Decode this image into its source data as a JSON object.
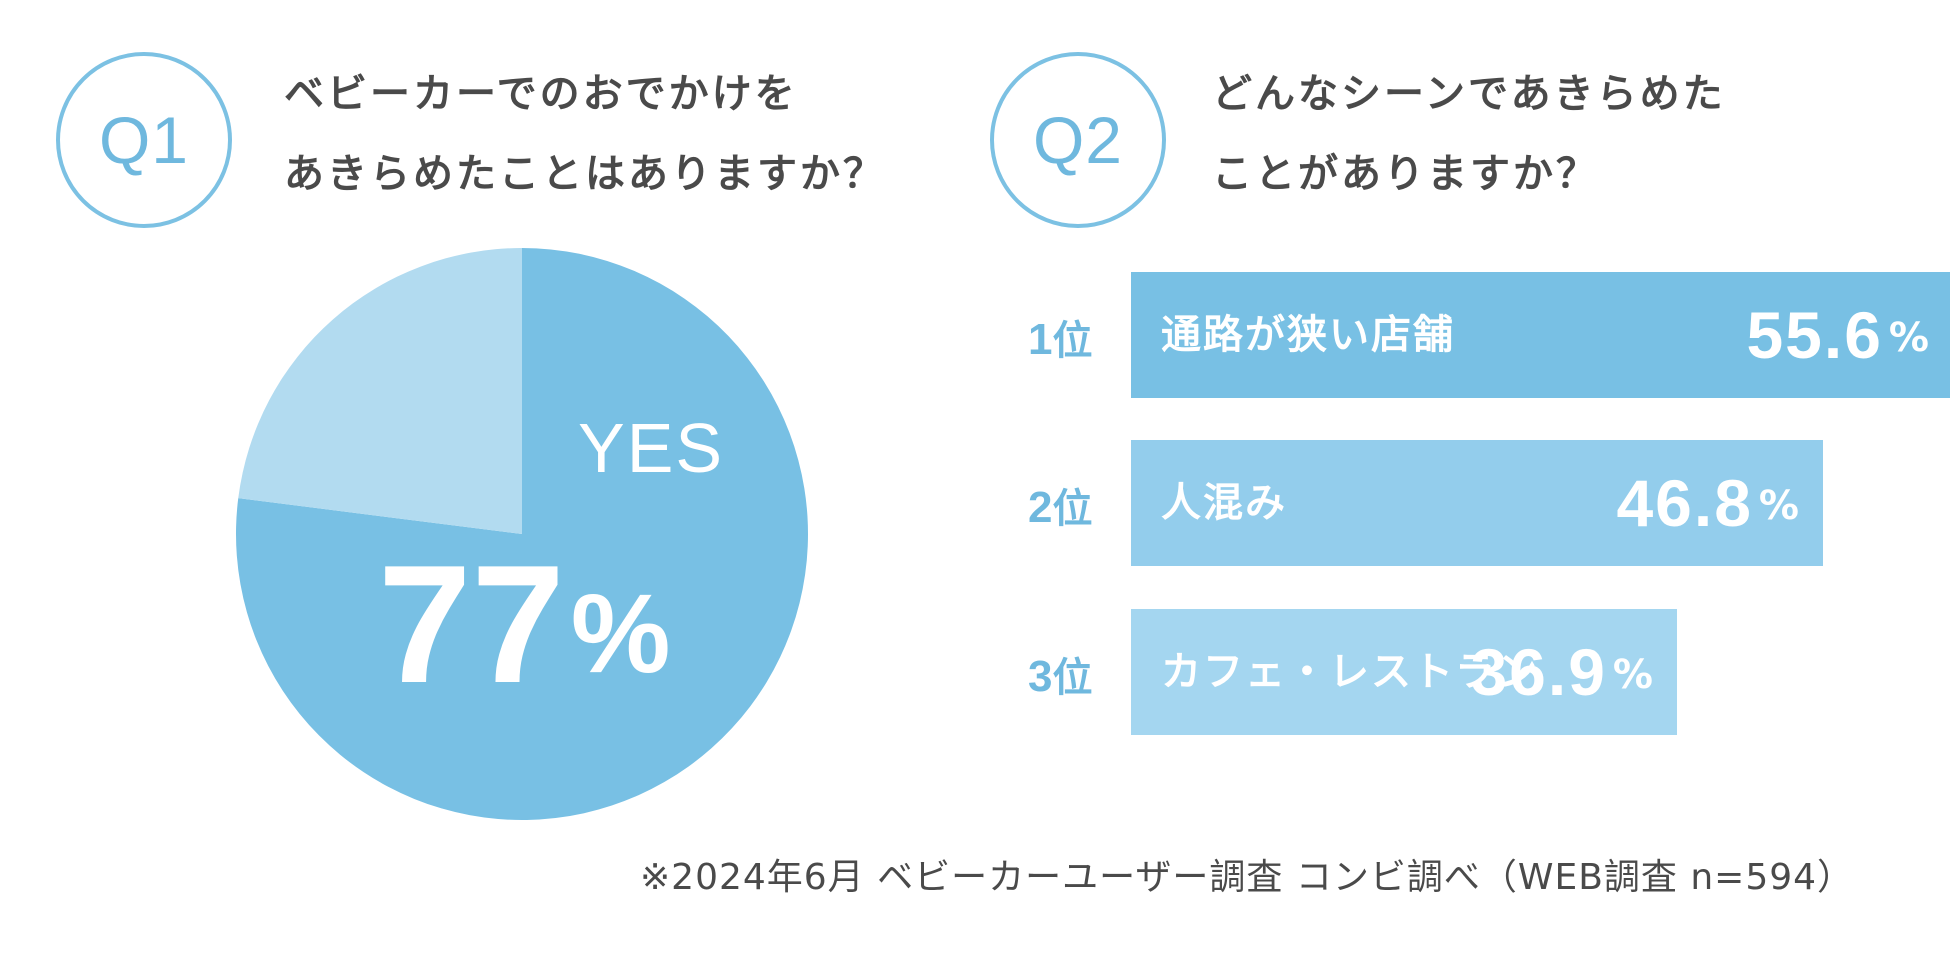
{
  "q1": {
    "badge": "Q1",
    "title_line1": "ベビーカーでのおでかけを",
    "title_line2": "あきらめたことはありますか？"
  },
  "q2": {
    "badge": "Q2",
    "title_line1": "どんなシーンであきらめた",
    "title_line2": "ことがありますか？"
  },
  "pie_labels": {
    "yes": "YES",
    "value": "77",
    "unit": "%"
  },
  "bar_labels": [
    {
      "rank": "1",
      "rank_suffix": "位",
      "label": "通路が狭い店舗",
      "value": "55.6",
      "unit": "%"
    },
    {
      "rank": "2",
      "rank_suffix": "位",
      "label": "人混み",
      "value": "46.8",
      "unit": "%"
    },
    {
      "rank": "3",
      "rank_suffix": "位",
      "label": "カフェ・レストラン",
      "value": "36.9",
      "unit": "%"
    }
  ],
  "footnote": "※2024年6月 ベビーカーユーザー調査 コンビ調べ（WEB調査 n=594）",
  "chart_data": [
    {
      "type": "pie",
      "categories": [
        "YES",
        ""
      ],
      "values": [
        77,
        23
      ],
      "colors": [
        "#78c0e4",
        "#b2dbf0"
      ]
    },
    {
      "type": "bar",
      "orientation": "horizontal",
      "categories": [
        "通路が狭い店舗",
        "人混み",
        "カフェ・レストラン"
      ],
      "values": [
        55.6,
        46.8,
        36.9
      ],
      "colors": [
        "#78c0e4",
        "#93cdec",
        "#a4d6f0"
      ]
    }
  ]
}
